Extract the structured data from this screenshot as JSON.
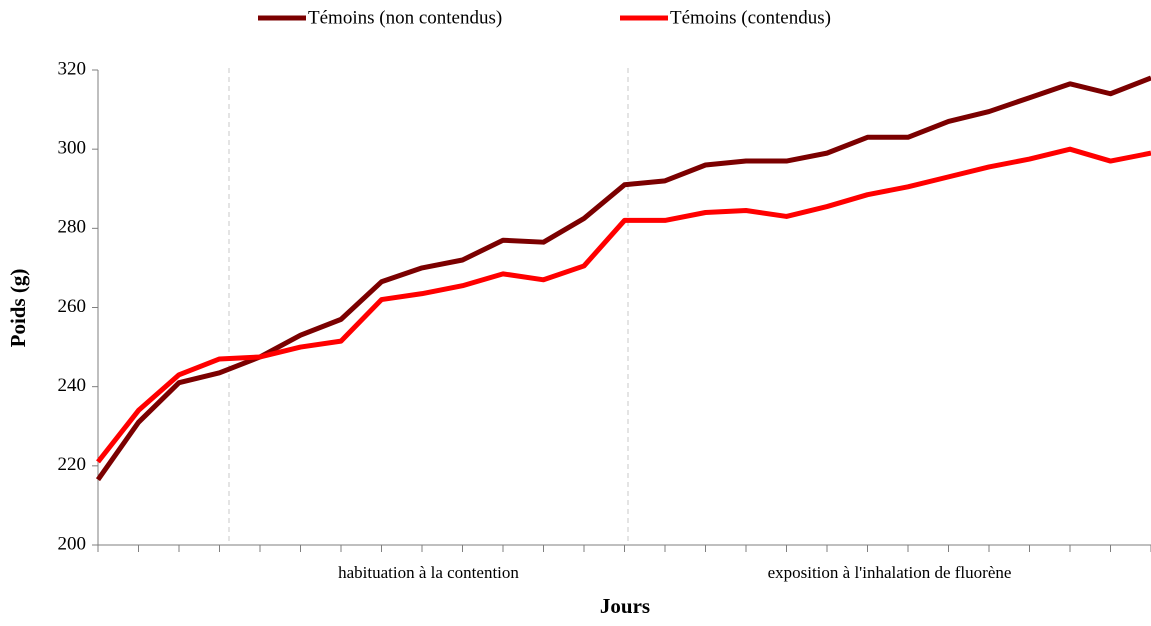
{
  "chart_data": {
    "type": "line",
    "xlabel": "Jours",
    "ylabel": "Poids (g)",
    "categories": [
      null,
      null,
      null,
      null,
      null,
      null,
      null,
      null,
      null,
      null,
      null,
      null,
      null,
      null,
      null,
      null,
      null,
      null,
      null,
      null,
      null,
      null,
      null,
      null,
      null,
      null,
      null
    ],
    "groups": [
      "habituation à la contention",
      "exposition à l'inhalation de fluorène"
    ],
    "series": [
      {
        "name": "Témoins (non contendus)",
        "color": "#7b0000",
        "values": [
          216.5,
          231,
          241,
          243.5,
          247.5,
          253,
          257,
          266.5,
          270,
          272,
          277,
          276.5,
          282.5,
          291,
          292,
          296,
          297,
          297,
          299,
          303,
          303,
          307,
          309.5,
          313,
          316.5,
          314,
          318
        ]
      },
      {
        "name": "Témoins (contendus)",
        "color": "#ff0000",
        "values": [
          221,
          234,
          243,
          247,
          247.5,
          250,
          251.5,
          262,
          263.5,
          265.5,
          268.5,
          267,
          270.5,
          282,
          282,
          284,
          284.5,
          283,
          285.5,
          288.5,
          290.5,
          293,
          295.5,
          297.5,
          300,
          297,
          299
        ]
      }
    ],
    "ylim": [
      200,
      320
    ],
    "yticks": [
      200,
      220,
      240,
      260,
      280,
      300,
      320
    ],
    "grid": false,
    "legend": "top"
  }
}
